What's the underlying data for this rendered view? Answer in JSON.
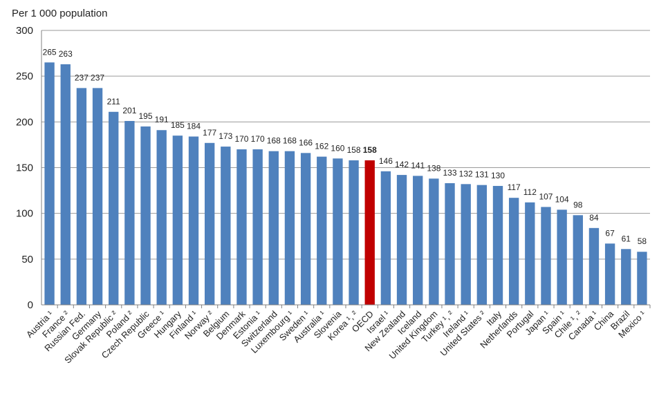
{
  "chart_data": {
    "type": "bar",
    "ylabel": "Per 1 000 population",
    "ylim": [
      0,
      300
    ],
    "yticks": [
      "0",
      "50",
      "100",
      "150",
      "200",
      "250",
      "300"
    ],
    "grid": true,
    "bar_color": "#4F81BD",
    "highlight_color": "#C00000",
    "highlight_category": "OECD",
    "categories": [
      "Austria ¹",
      "France ²",
      "Russian Fed.",
      "Germany",
      "Slovak Republic ²",
      "Poland ²",
      "Czech Republic",
      "Greece ¹",
      "Hungary",
      "Finland ¹",
      "Norway ²",
      "Belgium",
      "Denmark",
      "Estonia ¹",
      "Switzerland",
      "Luxembourg ¹",
      "Sweden ¹",
      "Australia ¹",
      "Slovenia",
      "Korea ¹, ²",
      "OECD",
      "Israel ¹",
      "New Zealand",
      "Iceland",
      "United Kingdom",
      "Turkey ¹, ²",
      "Ireland ¹",
      "United States ²",
      "Italy",
      "Netherlands",
      "Portugal",
      "Japan ¹",
      "Spain ¹",
      "Chile ¹, ²",
      "Canada ¹",
      "China",
      "Brazil",
      "Mexico ¹"
    ],
    "values": [
      265,
      263,
      237,
      237,
      211,
      201,
      195,
      191,
      185,
      184,
      177,
      173,
      170,
      170,
      168,
      168,
      166,
      162,
      160,
      158,
      158,
      146,
      142,
      141,
      138,
      133,
      132,
      131,
      130,
      117,
      112,
      107,
      104,
      98,
      84,
      67,
      61,
      58
    ]
  }
}
